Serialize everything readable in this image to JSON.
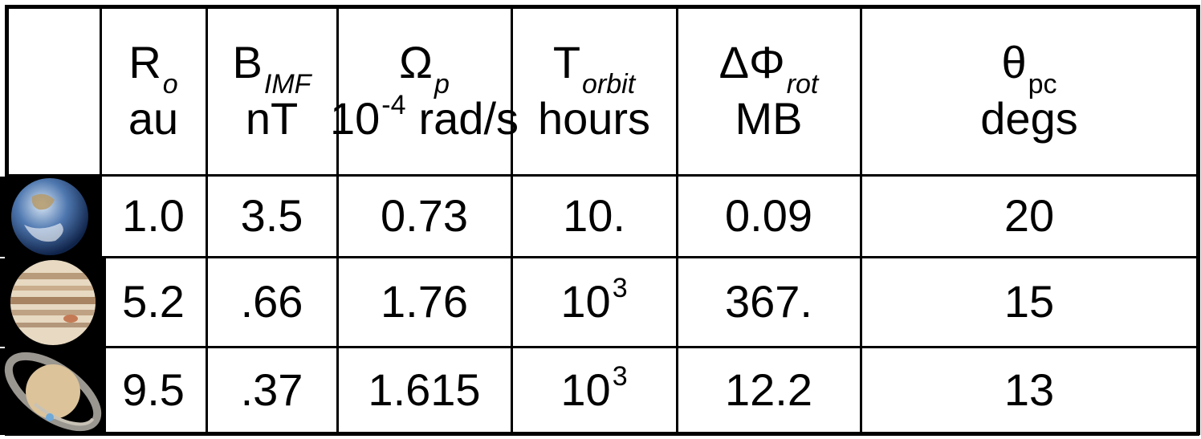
{
  "table": {
    "header": [
      {
        "symbol": "R",
        "sub": "o",
        "unit": "au"
      },
      {
        "symbol": "B",
        "sub": "IMF",
        "unit": "nT"
      },
      {
        "symbol": "Ω",
        "sub": "p",
        "unit_base": "10",
        "unit_sup": "-4",
        "unit_rest": "rad/s"
      },
      {
        "symbol": "T",
        "sub": "orbit",
        "unit": "hours"
      },
      {
        "symbol": "ΔΦ",
        "sub": "rot",
        "unit": "MB"
      },
      {
        "symbol": "θ",
        "sub": "pc",
        "unit": "degs"
      }
    ],
    "rows": [
      [
        "1.0",
        "3.5",
        "0.73",
        "10.",
        "0.09",
        "20"
      ],
      [
        "5.2",
        ".66",
        "1.76",
        {
          "base": "10",
          "sup": "3"
        },
        "367.",
        "15"
      ],
      [
        "9.5",
        ".37",
        "1.615",
        {
          "base": "10",
          "sup": "3"
        },
        "12.2",
        "13"
      ]
    ]
  }
}
